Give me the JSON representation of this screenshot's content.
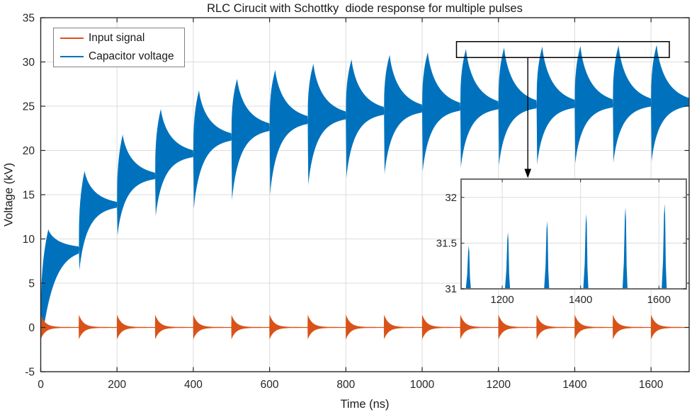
{
  "chart_data": {
    "type": "line",
    "title": "RLC Cirucit with Schottky  diode response for multiple pulses",
    "xlabel": "Time (ns)",
    "ylabel": "Voltage (kV)",
    "xlim": [
      0,
      1700
    ],
    "ylim": [
      -5,
      35
    ],
    "xticks": [
      0,
      200,
      400,
      600,
      800,
      1000,
      1200,
      1400,
      1600
    ],
    "yticks": [
      -5,
      0,
      5,
      10,
      15,
      20,
      25,
      30,
      35
    ],
    "grid": true,
    "legend": {
      "position": "top-left",
      "items": [
        "Input signal",
        "Capacitor voltage"
      ]
    },
    "series": [
      {
        "name": "Input signal",
        "color": "#D95319",
        "shape": "damped_pulse_train",
        "pulse_period_ns": 100,
        "pulse_times": [
          0,
          100,
          200,
          300,
          400,
          500,
          600,
          700,
          800,
          900,
          1000,
          1100,
          1200,
          1300,
          1400,
          1500,
          1600
        ],
        "amplitude_kv": 1.4,
        "amplitude_neg_kv": -1.3,
        "decay_tau_ns": 12
      },
      {
        "name": "Capacitor voltage",
        "color": "#0072BD",
        "shape": "ringing_envelope",
        "pulses": [
          {
            "t": 0,
            "peak": 11.1,
            "settle": 8.9,
            "dip": 0
          },
          {
            "t": 100,
            "peak": 17.7,
            "settle": 13.8,
            "dip": 6.4
          },
          {
            "t": 200,
            "peak": 21.8,
            "settle": 17.0,
            "dip": 10.4
          },
          {
            "t": 300,
            "peak": 24.7,
            "settle": 19.5,
            "dip": 12.5
          },
          {
            "t": 400,
            "peak": 26.8,
            "settle": 21.4,
            "dip": 13.4
          },
          {
            "t": 500,
            "peak": 28.1,
            "settle": 22.5,
            "dip": 14.3
          },
          {
            "t": 600,
            "peak": 29.1,
            "settle": 23.3,
            "dip": 15.0
          },
          {
            "t": 700,
            "peak": 29.8,
            "settle": 23.8,
            "dip": 16.0
          },
          {
            "t": 800,
            "peak": 30.3,
            "settle": 24.3,
            "dip": 16.9
          },
          {
            "t": 900,
            "peak": 30.8,
            "settle": 24.55,
            "dip": 17.3
          },
          {
            "t": 1000,
            "peak": 31.1,
            "settle": 24.75,
            "dip": 17.6
          },
          {
            "t": 1100,
            "peak": 31.47,
            "settle": 24.9,
            "dip": 18.0
          },
          {
            "t": 1200,
            "peak": 31.62,
            "settle": 25.0,
            "dip": 18.3
          },
          {
            "t": 1300,
            "peak": 31.74,
            "settle": 25.05,
            "dip": 18.4
          },
          {
            "t": 1400,
            "peak": 31.82,
            "settle": 25.1,
            "dip": 18.5
          },
          {
            "t": 1500,
            "peak": 31.89,
            "settle": 25.2,
            "dip": 18.6
          },
          {
            "t": 1600,
            "peak": 31.93,
            "settle": 25.25,
            "dip": 18.7
          }
        ]
      }
    ],
    "inset": {
      "xlim": [
        1095,
        1670
      ],
      "ylim": [
        31,
        32.2
      ],
      "xticks": [
        1200,
        1400,
        1600
      ],
      "yticks": [
        31,
        31.5,
        32
      ],
      "peaks": [
        {
          "t": 1115,
          "v": 31.47
        },
        {
          "t": 1215,
          "v": 31.62
        },
        {
          "t": 1315,
          "v": 31.74
        },
        {
          "t": 1415,
          "v": 31.82
        },
        {
          "t": 1515,
          "v": 31.89
        },
        {
          "t": 1615,
          "v": 31.93
        }
      ]
    },
    "annotation": {
      "rect_t": [
        1090,
        1648
      ],
      "rect_v": [
        30.5,
        32.3
      ],
      "arrow_t": 1277,
      "arrow_from_v": 30.5,
      "arrow_points_to": "inset"
    },
    "colors": {
      "axis": "#262626",
      "grid": "#dcdcdc",
      "background": "#ffffff",
      "annotation": "#000000",
      "inset_border": "#6e6e6e",
      "legend_border": "#808080"
    }
  }
}
